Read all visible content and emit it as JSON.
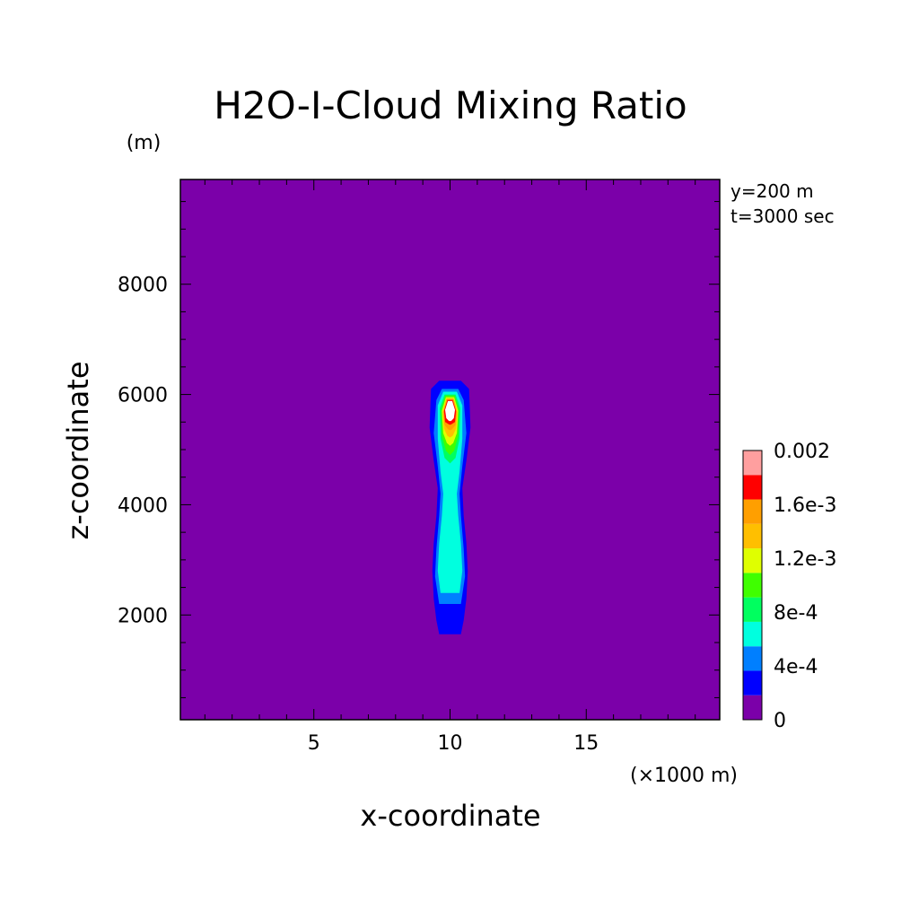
{
  "chart_data": {
    "type": "heatmap",
    "title": "H2O-I-Cloud Mixing Ratio",
    "xlabel": "x-coordinate",
    "ylabel": "z-coordinate",
    "x_unit": "(×1000 m)",
    "y_unit": "(m)",
    "annotations": [
      "y=200 m",
      "t=3000 sec"
    ],
    "xlim": [
      0.1,
      19.9
    ],
    "ylim": [
      100,
      9900
    ],
    "x_ticks": [
      5,
      10,
      15
    ],
    "x_tick_labels": [
      "5",
      "10",
      "15"
    ],
    "y_ticks": [
      2000,
      4000,
      6000,
      8000
    ],
    "y_tick_labels": [
      "2000",
      "4000",
      "6000",
      "8000"
    ],
    "grid": false,
    "background_value": 0,
    "colorbar": {
      "levels": [
        0,
        0.0002,
        0.0004,
        0.0006,
        0.0008,
        0.001,
        0.0012,
        0.0014,
        0.0016,
        0.0018,
        0.002
      ],
      "labels": [
        {
          "value": 0,
          "text": "0"
        },
        {
          "value": 0.0004,
          "text": "4e-4"
        },
        {
          "value": 0.0008,
          "text": "8e-4"
        },
        {
          "value": 0.0012,
          "text": "1.2e-3"
        },
        {
          "value": 0.0016,
          "text": "1.6e-3"
        },
        {
          "value": 0.002,
          "text": "0.002"
        }
      ],
      "colors": [
        "#7b00a9",
        "#0000ff",
        "#007fff",
        "#00ffdf",
        "#00ff5f",
        "#3fff00",
        "#dfff00",
        "#ffbf00",
        "#ff9f00",
        "#ff0000",
        "#ff9f9f"
      ]
    },
    "contours": [
      {
        "level": 0.0002,
        "color": "#0000ff",
        "points": [
          [
            9.6,
            6.25
          ],
          [
            10.4,
            6.25
          ],
          [
            10.7,
            6.1
          ],
          [
            10.75,
            5.4
          ],
          [
            10.6,
            4.8
          ],
          [
            10.45,
            4.3
          ],
          [
            10.5,
            3.8
          ],
          [
            10.6,
            3.3
          ],
          [
            10.65,
            2.8
          ],
          [
            10.6,
            2.3
          ],
          [
            10.5,
            1.9
          ],
          [
            10.4,
            1.65
          ],
          [
            9.6,
            1.65
          ],
          [
            9.5,
            1.9
          ],
          [
            9.4,
            2.3
          ],
          [
            9.35,
            2.8
          ],
          [
            9.4,
            3.3
          ],
          [
            9.5,
            3.8
          ],
          [
            9.55,
            4.3
          ],
          [
            9.4,
            4.8
          ],
          [
            9.25,
            5.4
          ],
          [
            9.3,
            6.1
          ]
        ]
      },
      {
        "level": 0.0004,
        "color": "#007fff",
        "points": [
          [
            9.7,
            6.1
          ],
          [
            10.3,
            6.1
          ],
          [
            10.5,
            5.9
          ],
          [
            10.6,
            5.3
          ],
          [
            10.45,
            4.7
          ],
          [
            10.35,
            4.2
          ],
          [
            10.4,
            3.8
          ],
          [
            10.5,
            3.2
          ],
          [
            10.55,
            2.7
          ],
          [
            10.4,
            2.2
          ],
          [
            9.6,
            2.2
          ],
          [
            9.45,
            2.7
          ],
          [
            9.5,
            3.2
          ],
          [
            9.6,
            3.8
          ],
          [
            9.65,
            4.2
          ],
          [
            9.55,
            4.7
          ],
          [
            9.4,
            5.3
          ],
          [
            9.5,
            5.9
          ]
        ]
      },
      {
        "level": 0.0006,
        "color": "#00ffdf",
        "points": [
          [
            9.75,
            6.05
          ],
          [
            10.25,
            6.05
          ],
          [
            10.45,
            5.8
          ],
          [
            10.45,
            5.2
          ],
          [
            10.35,
            4.6
          ],
          [
            10.25,
            4.2
          ],
          [
            10.3,
            3.8
          ],
          [
            10.4,
            3.3
          ],
          [
            10.45,
            2.8
          ],
          [
            10.35,
            2.4
          ],
          [
            9.65,
            2.4
          ],
          [
            9.55,
            2.8
          ],
          [
            9.6,
            3.3
          ],
          [
            9.7,
            3.8
          ],
          [
            9.75,
            4.2
          ],
          [
            9.65,
            4.6
          ],
          [
            9.55,
            5.2
          ],
          [
            9.55,
            5.8
          ]
        ]
      },
      {
        "level": 0.0008,
        "color": "#00ff5f",
        "points": [
          [
            9.8,
            6.0
          ],
          [
            10.2,
            6.0
          ],
          [
            10.38,
            5.75
          ],
          [
            10.35,
            5.2
          ],
          [
            10.2,
            4.85
          ],
          [
            10.0,
            4.75
          ],
          [
            9.8,
            4.85
          ],
          [
            9.65,
            5.2
          ],
          [
            9.62,
            5.75
          ]
        ]
      },
      {
        "level": 0.001,
        "color": "#3fff00",
        "points": [
          [
            9.83,
            5.98
          ],
          [
            10.17,
            5.98
          ],
          [
            10.33,
            5.72
          ],
          [
            10.3,
            5.25
          ],
          [
            10.15,
            4.98
          ],
          [
            10.0,
            4.9
          ],
          [
            9.85,
            4.98
          ],
          [
            9.7,
            5.25
          ],
          [
            9.67,
            5.72
          ]
        ]
      },
      {
        "level": 0.0012,
        "color": "#dfff00",
        "points": [
          [
            9.85,
            5.95
          ],
          [
            10.15,
            5.95
          ],
          [
            10.3,
            5.7
          ],
          [
            10.25,
            5.3
          ],
          [
            10.12,
            5.12
          ],
          [
            10.0,
            5.07
          ],
          [
            9.88,
            5.12
          ],
          [
            9.75,
            5.3
          ],
          [
            9.7,
            5.7
          ]
        ]
      },
      {
        "level": 0.0014,
        "color": "#ffbf00",
        "points": [
          [
            9.87,
            5.93
          ],
          [
            10.13,
            5.93
          ],
          [
            10.27,
            5.68
          ],
          [
            10.22,
            5.38
          ],
          [
            10.1,
            5.25
          ],
          [
            10.0,
            5.22
          ],
          [
            9.9,
            5.25
          ],
          [
            9.78,
            5.38
          ],
          [
            9.73,
            5.68
          ]
        ]
      },
      {
        "level": 0.0016,
        "color": "#ff9f00",
        "points": [
          [
            9.88,
            5.92
          ],
          [
            10.12,
            5.92
          ],
          [
            10.25,
            5.68
          ],
          [
            10.2,
            5.45
          ],
          [
            10.08,
            5.37
          ],
          [
            10.0,
            5.35
          ],
          [
            9.92,
            5.37
          ],
          [
            9.8,
            5.45
          ],
          [
            9.75,
            5.68
          ]
        ]
      },
      {
        "level": 0.0018,
        "color": "#ff0000",
        "points": [
          [
            9.9,
            5.9
          ],
          [
            10.1,
            5.9
          ],
          [
            10.22,
            5.7
          ],
          [
            10.18,
            5.5
          ],
          [
            10.05,
            5.46
          ],
          [
            10.0,
            5.45
          ],
          [
            9.95,
            5.46
          ],
          [
            9.82,
            5.5
          ],
          [
            9.78,
            5.7
          ]
        ]
      },
      {
        "level": 0.002,
        "color": "#ffffff",
        "points": [
          [
            9.92,
            5.88
          ],
          [
            10.08,
            5.88
          ],
          [
            10.18,
            5.72
          ],
          [
            10.14,
            5.57
          ],
          [
            10.04,
            5.52
          ],
          [
            9.96,
            5.52
          ],
          [
            9.86,
            5.57
          ],
          [
            9.82,
            5.72
          ]
        ]
      }
    ]
  }
}
